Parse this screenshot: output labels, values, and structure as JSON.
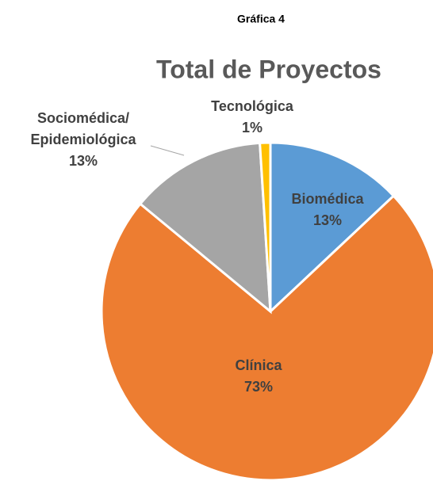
{
  "header": "Gráfica 4",
  "chart_data": {
    "type": "pie",
    "title": "Total de Proyectos",
    "categories": [
      "Biomédica",
      "Clínica",
      "Sociomédica/Epidemiológica",
      "Tecnológica"
    ],
    "values": [
      13,
      73,
      13,
      1
    ],
    "value_labels": [
      "13%",
      "73%",
      "13%",
      "1%"
    ],
    "colors": [
      "#5b9bd5",
      "#ed7d31",
      "#a5a5a5",
      "#ffc000"
    ]
  }
}
